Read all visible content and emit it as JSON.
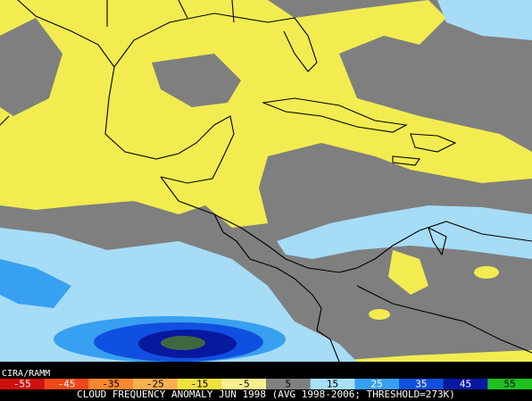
{
  "credit": "CIRA/RAMM",
  "colorbar": {
    "ticks": [
      -55,
      -45,
      -35,
      -25,
      -15,
      -5,
      5,
      15,
      25,
      35,
      45,
      55
    ],
    "colors": [
      "#d01010",
      "#f04818",
      "#f88830",
      "#f8b050",
      "#f0e040",
      "#f8f090",
      "#808080",
      "#a8e0f8",
      "#38a0f0",
      "#1050e0",
      "#0818a0",
      "#20c020"
    ]
  },
  "caption": "CLOUD FREQUENCY ANOMALY JUN 1998 (AVG 1998-2006; THRESHOLD=273K)"
}
